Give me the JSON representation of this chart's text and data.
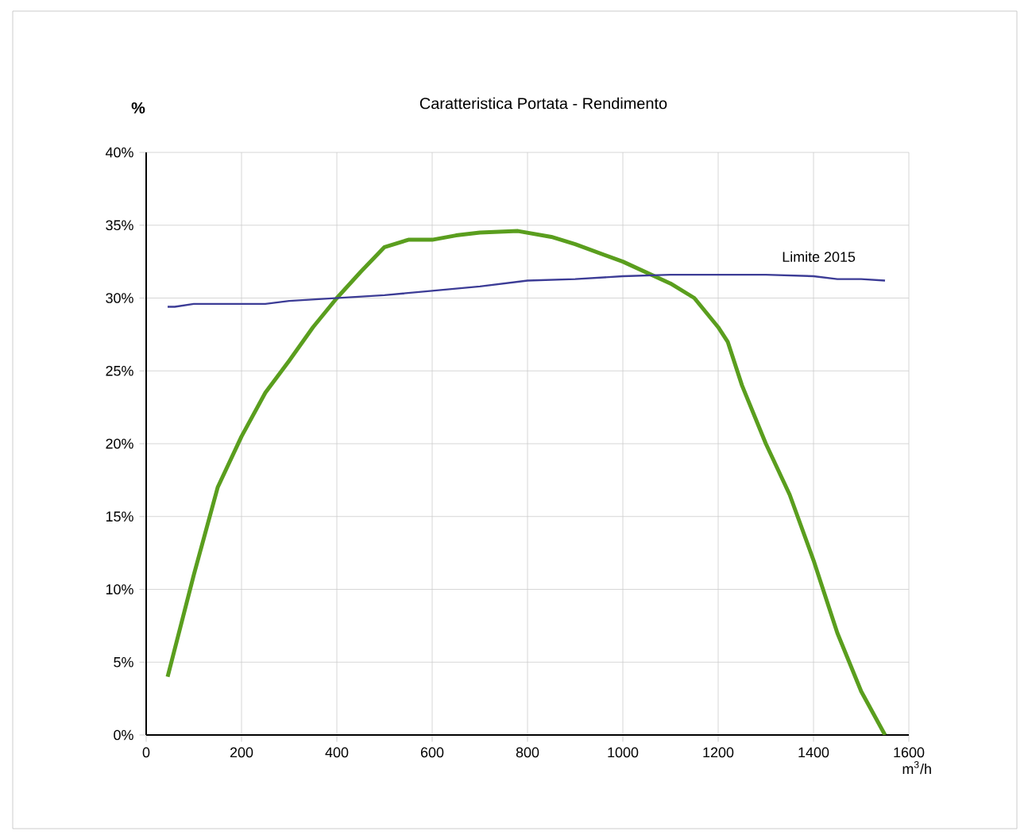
{
  "chart_data": {
    "type": "line",
    "title": "Caratteristica Portata - Rendimento",
    "xlabel": "m$^{3}$/h",
    "ylabel": "%",
    "xlim": [
      0,
      1600
    ],
    "xticks": [
      0,
      200,
      400,
      600,
      800,
      1000,
      1200,
      1400,
      1600
    ],
    "ylim": [
      0,
      40
    ],
    "yticks": [
      {
        "value": 0,
        "label": "0%"
      },
      {
        "value": 5,
        "label": "5%"
      },
      {
        "value": 10,
        "label": "10%"
      },
      {
        "value": 15,
        "label": "15%"
      },
      {
        "value": 20,
        "label": "20%"
      },
      {
        "value": 25,
        "label": "25%"
      },
      {
        "value": 30,
        "label": "30%"
      },
      {
        "value": 35,
        "label": "35%"
      },
      {
        "value": 40,
        "label": "40%"
      }
    ],
    "grid": true,
    "legend": false,
    "marker": "none",
    "series": [
      {
        "color": "#5a9e1e",
        "x": [
          45,
          100,
          150,
          200,
          250,
          300,
          350,
          400,
          450,
          500,
          550,
          600,
          650,
          700,
          780,
          850,
          900,
          1000,
          1100,
          1150,
          1200,
          1220,
          1250,
          1300,
          1350,
          1400,
          1450,
          1500,
          1550
        ],
        "values": [
          4,
          11,
          17,
          20.5,
          23.5,
          25.7,
          28,
          30,
          31.8,
          33.5,
          34,
          34,
          34.3,
          34.5,
          34.6,
          34.2,
          33.7,
          32.5,
          31,
          30,
          28,
          27,
          24,
          20,
          16.5,
          12,
          7,
          3,
          0
        ]
      },
      {
        "name": "Limite 2015",
        "color": "#3c3c96",
        "x": [
          45,
          60,
          100,
          250,
          300,
          400,
          500,
          600,
          700,
          800,
          900,
          1000,
          1100,
          1200,
          1300,
          1400,
          1450,
          1500,
          1550
        ],
        "values": [
          29.4,
          29.4,
          29.6,
          29.6,
          29.8,
          30,
          30.2,
          30.5,
          30.8,
          31.2,
          31.3,
          31.5,
          31.6,
          31.6,
          31.6,
          31.5,
          31.3,
          31.3,
          31.2
        ]
      }
    ]
  }
}
